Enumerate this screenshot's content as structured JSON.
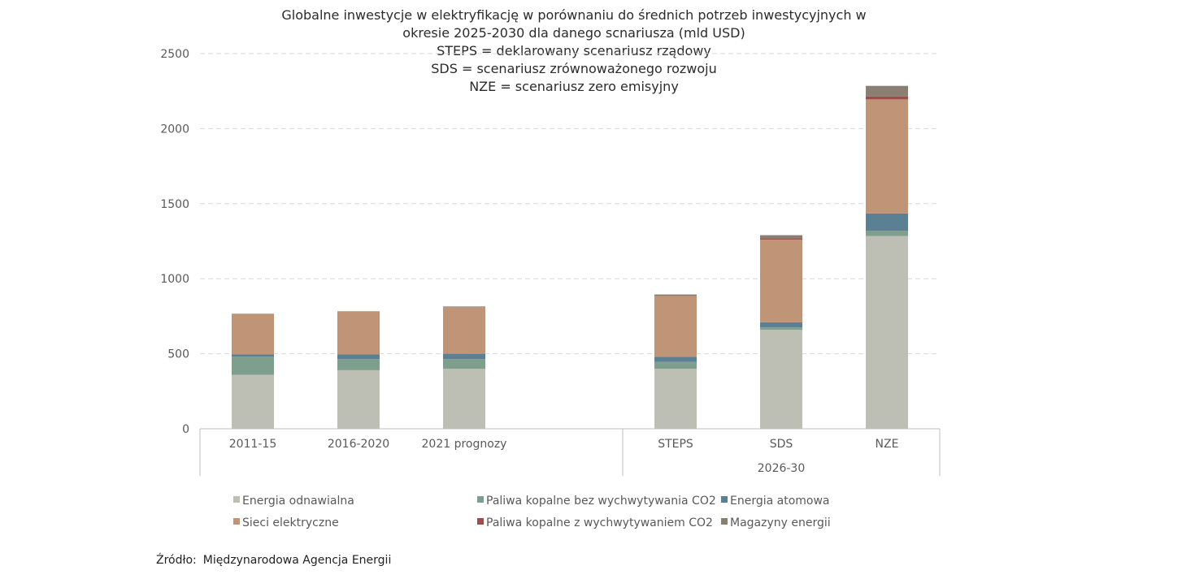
{
  "chart_data": {
    "type": "bar",
    "stacked": true,
    "title_lines": [
      "Globalne inwestycje w elektryfikację w porównaniu do średnich potrzeb inwestycyjnych w",
      "okresie 2025-2030 dla danego scnariusza (mld USD)",
      "STEPS = deklarowany scenariusz rządowy",
      "SDS = scenariusz zrównoważonego rozwoju",
      "NZE = scenariusz zero emisyjny"
    ],
    "categories": [
      "2011-15",
      "2016-2020",
      "2021 prognozy",
      "",
      "STEPS",
      "SDS",
      "NZE"
    ],
    "group_labels": [
      {
        "label": "",
        "categories": [
          "2011-15",
          "2016-2020",
          "2021 prognozy",
          ""
        ]
      },
      {
        "label": "2026-30",
        "categories": [
          "STEPS",
          "SDS",
          "NZE"
        ]
      }
    ],
    "ylim": [
      0,
      2500
    ],
    "yticks": [
      0,
      500,
      1000,
      1500,
      2000,
      2500
    ],
    "grid": true,
    "legend_position": "bottom",
    "series": [
      {
        "name": "Energia odnawialna",
        "color": "#bdbfb4",
        "values": [
          360,
          390,
          400,
          null,
          400,
          660,
          1285
        ]
      },
      {
        "name": "Paliwa kopalne bez wychwytywania CO2",
        "color": "#7f9f8e",
        "values": [
          120,
          75,
          65,
          null,
          45,
          15,
          35
        ]
      },
      {
        "name": "Energia atomowa",
        "color": "#5b7f93",
        "values": [
          15,
          30,
          35,
          null,
          35,
          35,
          115
        ]
      },
      {
        "name": "Sieci elektryczne",
        "color": "#c09476",
        "values": [
          270,
          285,
          310,
          null,
          405,
          550,
          760
        ]
      },
      {
        "name": "Paliwa kopalne z wychwytywaniem CO2",
        "color": "#9e4d4f",
        "values": [
          0,
          0,
          0,
          null,
          0,
          10,
          20
        ]
      },
      {
        "name": "Magazyny energii",
        "color": "#8b7f72",
        "values": [
          2,
          3,
          5,
          null,
          10,
          20,
          70
        ]
      }
    ]
  },
  "source": {
    "label": "Źródło:",
    "text": "Międzynarodowa Agencja Energii"
  }
}
